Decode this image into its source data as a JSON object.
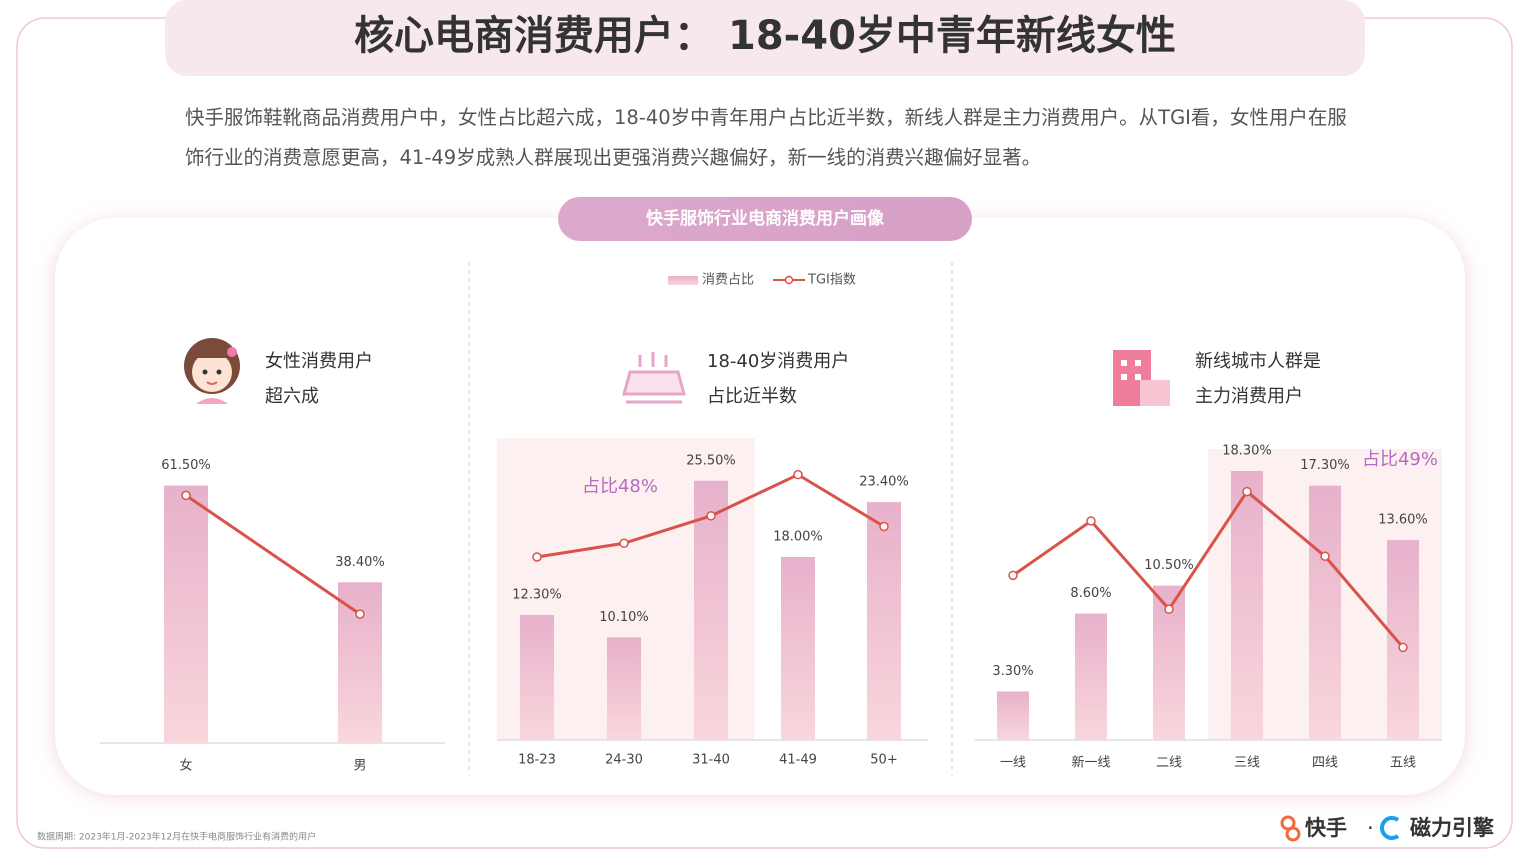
{
  "title": "核心电商消费用户： 18-40岁中青年新线女性",
  "description": "快手服饰鞋靴商品消费用户中，女性占比超六成，18-40岁中青年用户占比近半数，新线人群是主力消费用户。从TGI看，女性用户在服饰行业的消费意愿更高，41-49岁成熟人群展现出更强消费兴趣偏好，新一线的消费兴趣偏好显著。",
  "section_label": "快手服饰行业电商消费用户画像",
  "legend": [
    "消费占比",
    "TGI指数"
  ],
  "source": "数据周期: 2023年1月-2023年12月在快手电商服饰行业有消费的用户",
  "brand": [
    "快手",
    "磁力引擎"
  ],
  "chart_data": [
    {
      "type": "bar-line",
      "heading": [
        "女性消费用户",
        "超六成"
      ],
      "categories": [
        "女",
        "男"
      ],
      "series": [
        {
          "color": "#e9b3cc",
          "values": [
            61.5,
            38.4
          ],
          "value_labels": [
            "61.50%",
            "38.40%"
          ]
        },
        {
          "color": "#d9534a",
          "axis": "y2",
          "values": [
            169,
            88
          ]
        }
      ],
      "ylim": [
        0,
        70
      ],
      "y2lim": [
        0,
        200
      ]
    },
    {
      "type": "bar-line",
      "heading": [
        "18-40岁消费用户",
        "占比近半数"
      ],
      "categories": [
        "18-23",
        "24-30",
        "31-40",
        "41-49",
        "50+"
      ],
      "series": [
        {
          "color": "#e9b3cc",
          "values": [
            12.3,
            10.1,
            25.5,
            18.0,
            23.4
          ],
          "value_labels": [
            "12.30%",
            "10.10%",
            "25.50%",
            "18.00%",
            "23.40%"
          ]
        },
        {
          "color": "#d9534a",
          "axis": "y2",
          "values": [
            120,
            129,
            147,
            174,
            140
          ]
        }
      ],
      "ylim": [
        0,
        30
      ],
      "y2lim": [
        0,
        200
      ],
      "highlight": {
        "text": "占比48%",
        "categories": [
          "18-23",
          "24-30",
          "31-40"
        ]
      }
    },
    {
      "type": "bar-line",
      "heading": [
        "新线城市人群是",
        "主力消费用户"
      ],
      "categories": [
        "一线",
        "新一线",
        "二线",
        "三线",
        "四线",
        "五线"
      ],
      "series": [
        {
          "color": "#e9b3cc",
          "values": [
            3.3,
            8.6,
            10.5,
            18.3,
            17.3,
            13.6
          ],
          "value_labels": [
            "3.30%",
            "8.60%",
            "10.50%",
            "18.30%",
            "17.30%",
            "13.60%"
          ]
        },
        {
          "color": "#d9534a",
          "axis": "y2",
          "values": [
            112,
            149,
            89,
            169,
            125,
            63
          ]
        }
      ],
      "ylim": [
        0,
        20
      ],
      "y2lim": [
        0,
        200
      ],
      "highlight": {
        "text": "占比49%",
        "categories": [
          "三线",
          "四线",
          "五线"
        ]
      }
    }
  ]
}
